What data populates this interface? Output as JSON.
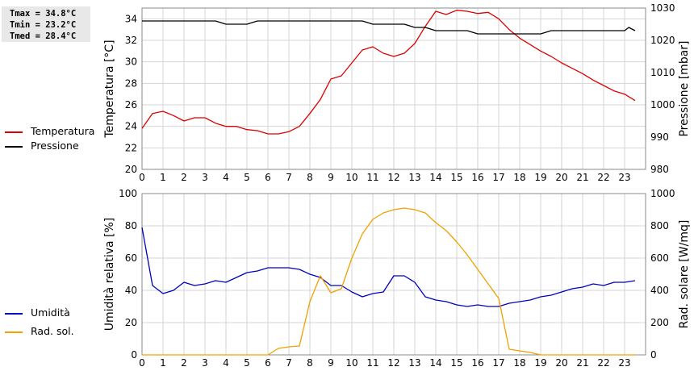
{
  "stats": {
    "tmax": "Tmax = 34.8°C",
    "tmin": "Tmin = 23.2°C",
    "tmed": "Tmed = 28.4°C"
  },
  "legend_top": [
    {
      "label": "Temperatura",
      "color": "#dd0000"
    },
    {
      "label": "Pressione",
      "color": "#000000"
    }
  ],
  "legend_bottom": [
    {
      "label": "Umidità",
      "color": "#0000c0"
    },
    {
      "label": "Rad. sol.",
      "color": "#f0a000"
    }
  ],
  "chart_data": [
    {
      "type": "line",
      "ylabel": "Temperatura [°C]",
      "y2label": "Pressione [mbar]",
      "xlim": [
        0,
        24
      ],
      "ylim": [
        20,
        35
      ],
      "y2lim": [
        980,
        1030
      ],
      "xticks": [
        "0",
        "1",
        "2",
        "3",
        "4",
        "5",
        "6",
        "7",
        "8",
        "9",
        "10",
        "11",
        "12",
        "13",
        "14",
        "15",
        "16",
        "17",
        "18",
        "19",
        "20",
        "21",
        "22",
        "23"
      ],
      "yticks": [
        "20",
        "22",
        "24",
        "26",
        "28",
        "30",
        "32",
        "34"
      ],
      "y2ticks": [
        "980",
        "990",
        "1000",
        "1010",
        "1020",
        "1030"
      ],
      "grid": true,
      "series": [
        {
          "name": "Temperatura",
          "color": "#dd0000",
          "axis": "left",
          "x": [
            0,
            0.5,
            1,
            1.5,
            2,
            2.5,
            3,
            3.5,
            4,
            4.5,
            5,
            5.5,
            6,
            6.5,
            7,
            7.5,
            8,
            8.5,
            9,
            9.5,
            10,
            10.5,
            11,
            11.5,
            12,
            12.5,
            13,
            13.5,
            14,
            14.5,
            15,
            15.5,
            16,
            16.5,
            17,
            17.5,
            18,
            18.5,
            19,
            19.5,
            20,
            20.5,
            21,
            21.5,
            22,
            22.5,
            23,
            23.5
          ],
          "values": [
            23.8,
            25.2,
            25.4,
            25.0,
            24.5,
            24.8,
            24.8,
            24.3,
            24.0,
            24.0,
            23.7,
            23.6,
            23.3,
            23.3,
            23.5,
            24.0,
            25.2,
            26.5,
            28.4,
            28.7,
            29.9,
            31.1,
            31.4,
            30.8,
            30.5,
            30.8,
            31.7,
            33.3,
            34.7,
            34.4,
            34.8,
            34.7,
            34.5,
            34.6,
            34.0,
            33.0,
            32.2,
            31.6,
            31.0,
            30.5,
            29.9,
            29.4,
            28.9,
            28.3,
            27.8,
            27.3,
            27.0,
            26.4
          ]
        },
        {
          "name": "Pressione",
          "color": "#000000",
          "axis": "right",
          "x": [
            0,
            3.5,
            4,
            5,
            5.5,
            10.5,
            11,
            12.5,
            13,
            13.5,
            14,
            15.5,
            16,
            19,
            19.5,
            23,
            23.2,
            23.5
          ],
          "values": [
            1026,
            1026,
            1025,
            1025,
            1026,
            1026,
            1025,
            1025,
            1024,
            1024,
            1023,
            1023,
            1022,
            1022,
            1023,
            1023,
            1024,
            1023
          ]
        }
      ]
    },
    {
      "type": "line",
      "ylabel": "Umidità relativa [%]",
      "y2label": "Rad. solare [W/mq]",
      "xlim": [
        0,
        24
      ],
      "ylim": [
        0,
        100
      ],
      "y2lim": [
        0,
        1000
      ],
      "xticks": [
        "0",
        "1",
        "2",
        "3",
        "4",
        "5",
        "6",
        "7",
        "8",
        "9",
        "10",
        "11",
        "12",
        "13",
        "14",
        "15",
        "16",
        "17",
        "18",
        "19",
        "20",
        "21",
        "22",
        "23"
      ],
      "yticks": [
        "0",
        "20",
        "40",
        "60",
        "80",
        "100"
      ],
      "y2ticks": [
        "0",
        "200",
        "400",
        "600",
        "800",
        "1000"
      ],
      "grid": true,
      "series": [
        {
          "name": "Umidità",
          "color": "#0000c0",
          "axis": "left",
          "x": [
            0,
            0.5,
            1,
            1.5,
            2,
            2.5,
            3,
            3.5,
            4,
            4.5,
            5,
            5.5,
            6,
            6.5,
            7,
            7.5,
            8,
            8.5,
            9,
            9.5,
            10,
            10.5,
            11,
            11.5,
            12,
            12.5,
            13,
            13.5,
            14,
            14.5,
            15,
            15.5,
            16,
            16.5,
            17,
            17.5,
            18,
            18.5,
            19,
            19.5,
            20,
            20.5,
            21,
            21.5,
            22,
            22.5,
            23,
            23.5
          ],
          "values": [
            79,
            43,
            38,
            40,
            45,
            43,
            44,
            46,
            45,
            48,
            51,
            52,
            54,
            54,
            54,
            53,
            50,
            48,
            43,
            43,
            39,
            36,
            38,
            39,
            49,
            49,
            45,
            36,
            34,
            33,
            31,
            30,
            31,
            30,
            30,
            32,
            33,
            34,
            36,
            37,
            39,
            41,
            42,
            44,
            43,
            45,
            45,
            46
          ]
        },
        {
          "name": "Rad. sol.",
          "color": "#f0a000",
          "axis": "right",
          "x": [
            0,
            6,
            6.5,
            7,
            7.5,
            8,
            8.5,
            9,
            9.5,
            10,
            10.5,
            11,
            11.5,
            12,
            12.5,
            13,
            13.5,
            14,
            14.5,
            15,
            15.5,
            16,
            16.5,
            17,
            17.5,
            18,
            18.5,
            19,
            23.5
          ],
          "values": [
            0,
            0,
            40,
            50,
            55,
            330,
            490,
            385,
            410,
            600,
            750,
            840,
            880,
            900,
            910,
            900,
            880,
            820,
            770,
            700,
            620,
            530,
            440,
            350,
            35,
            25,
            15,
            0,
            0
          ]
        }
      ]
    }
  ]
}
